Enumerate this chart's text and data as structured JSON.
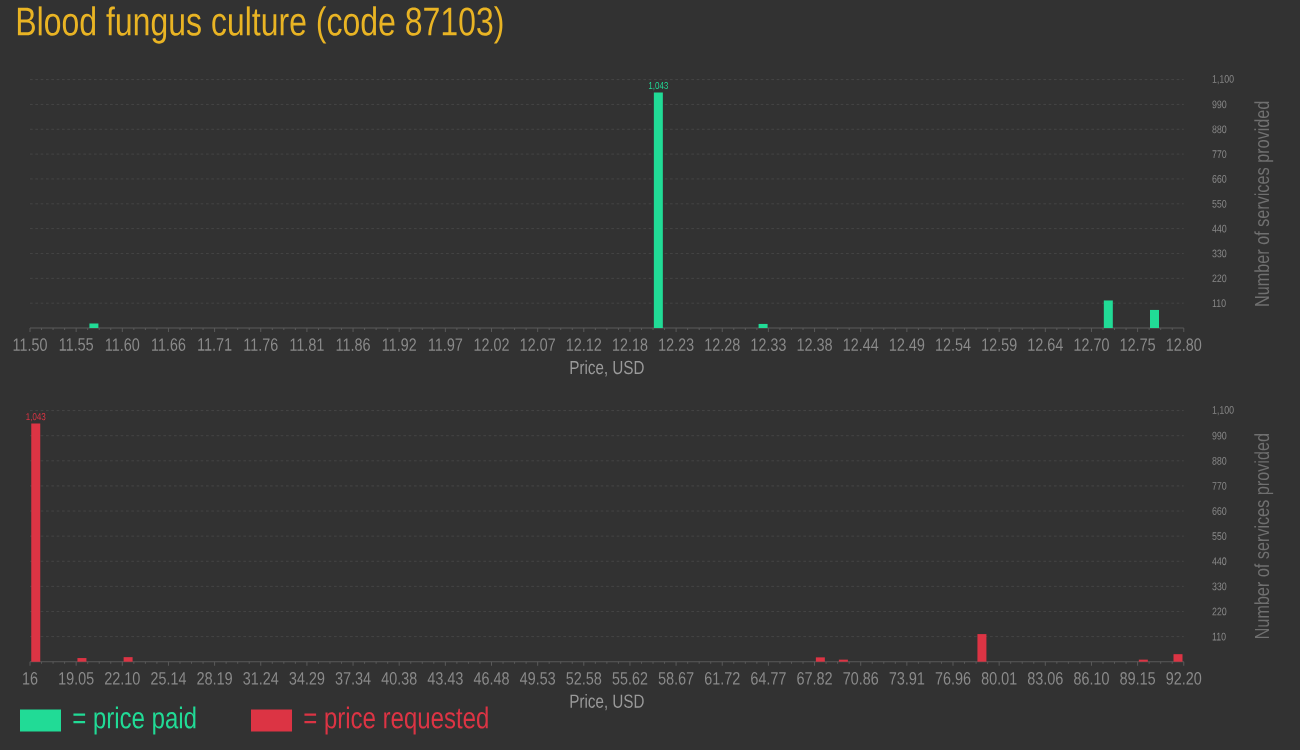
{
  "chart_data": [
    {
      "type": "bar",
      "title": "Blood fungus culture (code 87103)",
      "xlabel": "Price, USD",
      "ylabel": "Number of services provided",
      "x": [
        11.572,
        12.208,
        12.326,
        12.715,
        12.767
      ],
      "series": [
        {
          "name": "= price paid",
          "color": "#21db96",
          "values": [
            20,
            1043,
            18,
            122,
            80
          ],
          "value_labels": [
            null,
            "1,043",
            null,
            null,
            null
          ]
        }
      ],
      "xlim": [
        11.5,
        12.8
      ],
      "xticks": [
        {
          "value": 11.5,
          "label": "11.50"
        },
        {
          "value": 11.552,
          "label": "11.55"
        },
        {
          "value": 11.604,
          "label": "11.60"
        },
        {
          "value": 11.656,
          "label": "11.66"
        },
        {
          "value": 11.708,
          "label": "11.71"
        },
        11.76,
        {
          "value": 11.812,
          "label": "11.81"
        },
        {
          "value": 11.864,
          "label": "11.86"
        },
        {
          "value": 11.916,
          "label": "11.92"
        },
        {
          "value": 11.968,
          "label": "11.97"
        },
        12.02,
        {
          "value": 12.072,
          "label": "12.07"
        },
        {
          "value": 12.124,
          "label": "12.12"
        },
        {
          "value": 12.176,
          "label": "12.18"
        },
        {
          "value": 12.228,
          "label": "12.23"
        },
        12.28,
        {
          "value": 12.332,
          "label": "12.33"
        },
        {
          "value": 12.384,
          "label": "12.38"
        },
        {
          "value": 12.436,
          "label": "12.44"
        },
        {
          "value": 12.488,
          "label": "12.49"
        },
        12.54,
        {
          "value": 12.592,
          "label": "12.59"
        },
        {
          "value": 12.644,
          "label": "12.64"
        },
        {
          "value": 12.696,
          "label": "12.70"
        },
        {
          "value": 12.748,
          "label": "12.75"
        },
        {
          "value": 12.8,
          "label": "12.80"
        }
      ],
      "ylim": [
        0,
        1100
      ],
      "yticks": [
        110,
        220,
        330,
        440,
        550,
        660,
        770,
        880,
        990,
        {
          "value": 1100,
          "label": "1,100"
        }
      ],
      "grid": "y",
      "legend": "bottom left"
    },
    {
      "type": "bar",
      "xlabel": "Price, USD",
      "ylabel": "Number of services provided",
      "x": [
        16.38,
        19.43,
        22.48,
        68.2,
        69.72,
        78.87,
        89.53,
        91.82
      ],
      "series": [
        {
          "name": "= price requested",
          "color": "#dc3444",
          "values": [
            1043,
            16,
            20,
            19,
            9,
            121,
            9,
            33
          ],
          "value_labels": [
            "1,043",
            null,
            null,
            null,
            null,
            null,
            null,
            null
          ]
        }
      ],
      "xlim": [
        16,
        92.2
      ],
      "xticks": [
        16,
        {
          "value": 19.048,
          "label": "19.05"
        },
        {
          "value": 22.096,
          "label": "22.10"
        },
        {
          "value": 25.144,
          "label": "25.14"
        },
        {
          "value": 28.192,
          "label": "28.19"
        },
        31.24,
        {
          "value": 34.288,
          "label": "34.29"
        },
        {
          "value": 37.336,
          "label": "37.34"
        },
        {
          "value": 40.384,
          "label": "40.38"
        },
        {
          "value": 43.432,
          "label": "43.43"
        },
        46.48,
        {
          "value": 49.528,
          "label": "49.53"
        },
        {
          "value": 52.576,
          "label": "52.58"
        },
        {
          "value": 55.624,
          "label": "55.62"
        },
        {
          "value": 58.672,
          "label": "58.67"
        },
        61.72,
        {
          "value": 64.768,
          "label": "64.77"
        },
        {
          "value": 67.816,
          "label": "67.82"
        },
        {
          "value": 70.864,
          "label": "70.86"
        },
        {
          "value": 73.912,
          "label": "73.91"
        },
        76.96,
        {
          "value": 80.008,
          "label": "80.01"
        },
        {
          "value": 83.056,
          "label": "83.06"
        },
        {
          "value": 86.104,
          "label": "86.10"
        },
        {
          "value": 89.152,
          "label": "89.15"
        },
        {
          "value": 92.2,
          "label": "92.20"
        }
      ],
      "ylim": [
        0,
        1100
      ],
      "yticks": [
        110,
        220,
        330,
        440,
        550,
        660,
        770,
        880,
        990,
        {
          "value": 1100,
          "label": "1,100"
        }
      ],
      "grid": "y",
      "legend": "bottom left"
    }
  ]
}
